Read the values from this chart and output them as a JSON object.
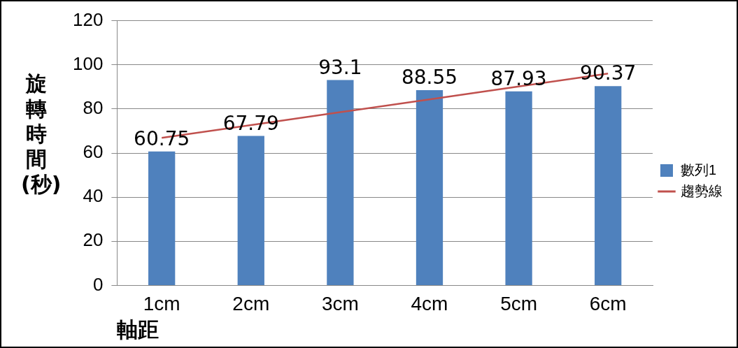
{
  "chart_data": {
    "type": "bar",
    "xlabel": "軸距",
    "ylabel": "旋轉時間(秒)",
    "categories": [
      "1cm",
      "2cm",
      "3cm",
      "4cm",
      "5cm",
      "6cm"
    ],
    "series": [
      {
        "name": "數列1",
        "color": "#4f81bd",
        "values": [
          60.75,
          67.79,
          93.1,
          88.55,
          87.93,
          90.37
        ],
        "value_labels": [
          "60.75",
          "67.79",
          "93.1",
          "88.55",
          "87.93",
          "90.37"
        ]
      },
      {
        "name": "趨勢線",
        "type": "line",
        "color": "#c0504d",
        "values": [
          66.9,
          72.7,
          78.5,
          84.3,
          90.2,
          96.0
        ]
      }
    ],
    "ylim": [
      0,
      120
    ],
    "yticks": [
      0,
      20,
      40,
      60,
      80,
      100,
      120
    ],
    "grid": "y",
    "legend": "right",
    "marker": "none"
  }
}
